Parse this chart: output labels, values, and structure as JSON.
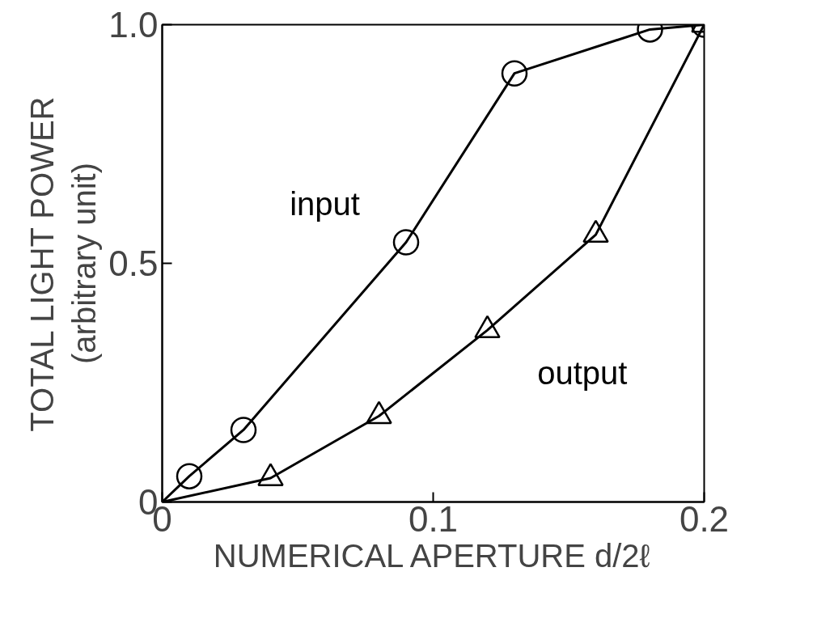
{
  "chart_data": {
    "type": "line",
    "xlabel": "NUMERICAL APERTURE d/2ℓ",
    "ylabel": "TOTAL LIGHT POWER\n(arbitrary unit)",
    "series": [
      {
        "name": "input",
        "color": "#000000",
        "marker": "circle",
        "x": [
          0,
          0.01,
          0.03,
          0.09,
          0.13,
          0.18,
          0.2
        ],
        "values": [
          0,
          0.054,
          0.151,
          0.544,
          0.898,
          0.99,
          1.0
        ]
      },
      {
        "name": "output",
        "color": "#000000",
        "marker": "triangle",
        "x": [
          0,
          0.04,
          0.08,
          0.12,
          0.16,
          0.2
        ],
        "values": [
          0,
          0.05,
          0.18,
          0.36,
          0.56,
          1.0
        ]
      }
    ],
    "xlim": [
      0,
      0.2
    ],
    "ylim": [
      0,
      1.0
    ],
    "xticks": [
      0,
      0.1,
      0.2
    ],
    "yticks": [
      0,
      0.5,
      {
        "value": 1.0,
        "label": "1.0"
      }
    ],
    "line_style": "solid"
  }
}
